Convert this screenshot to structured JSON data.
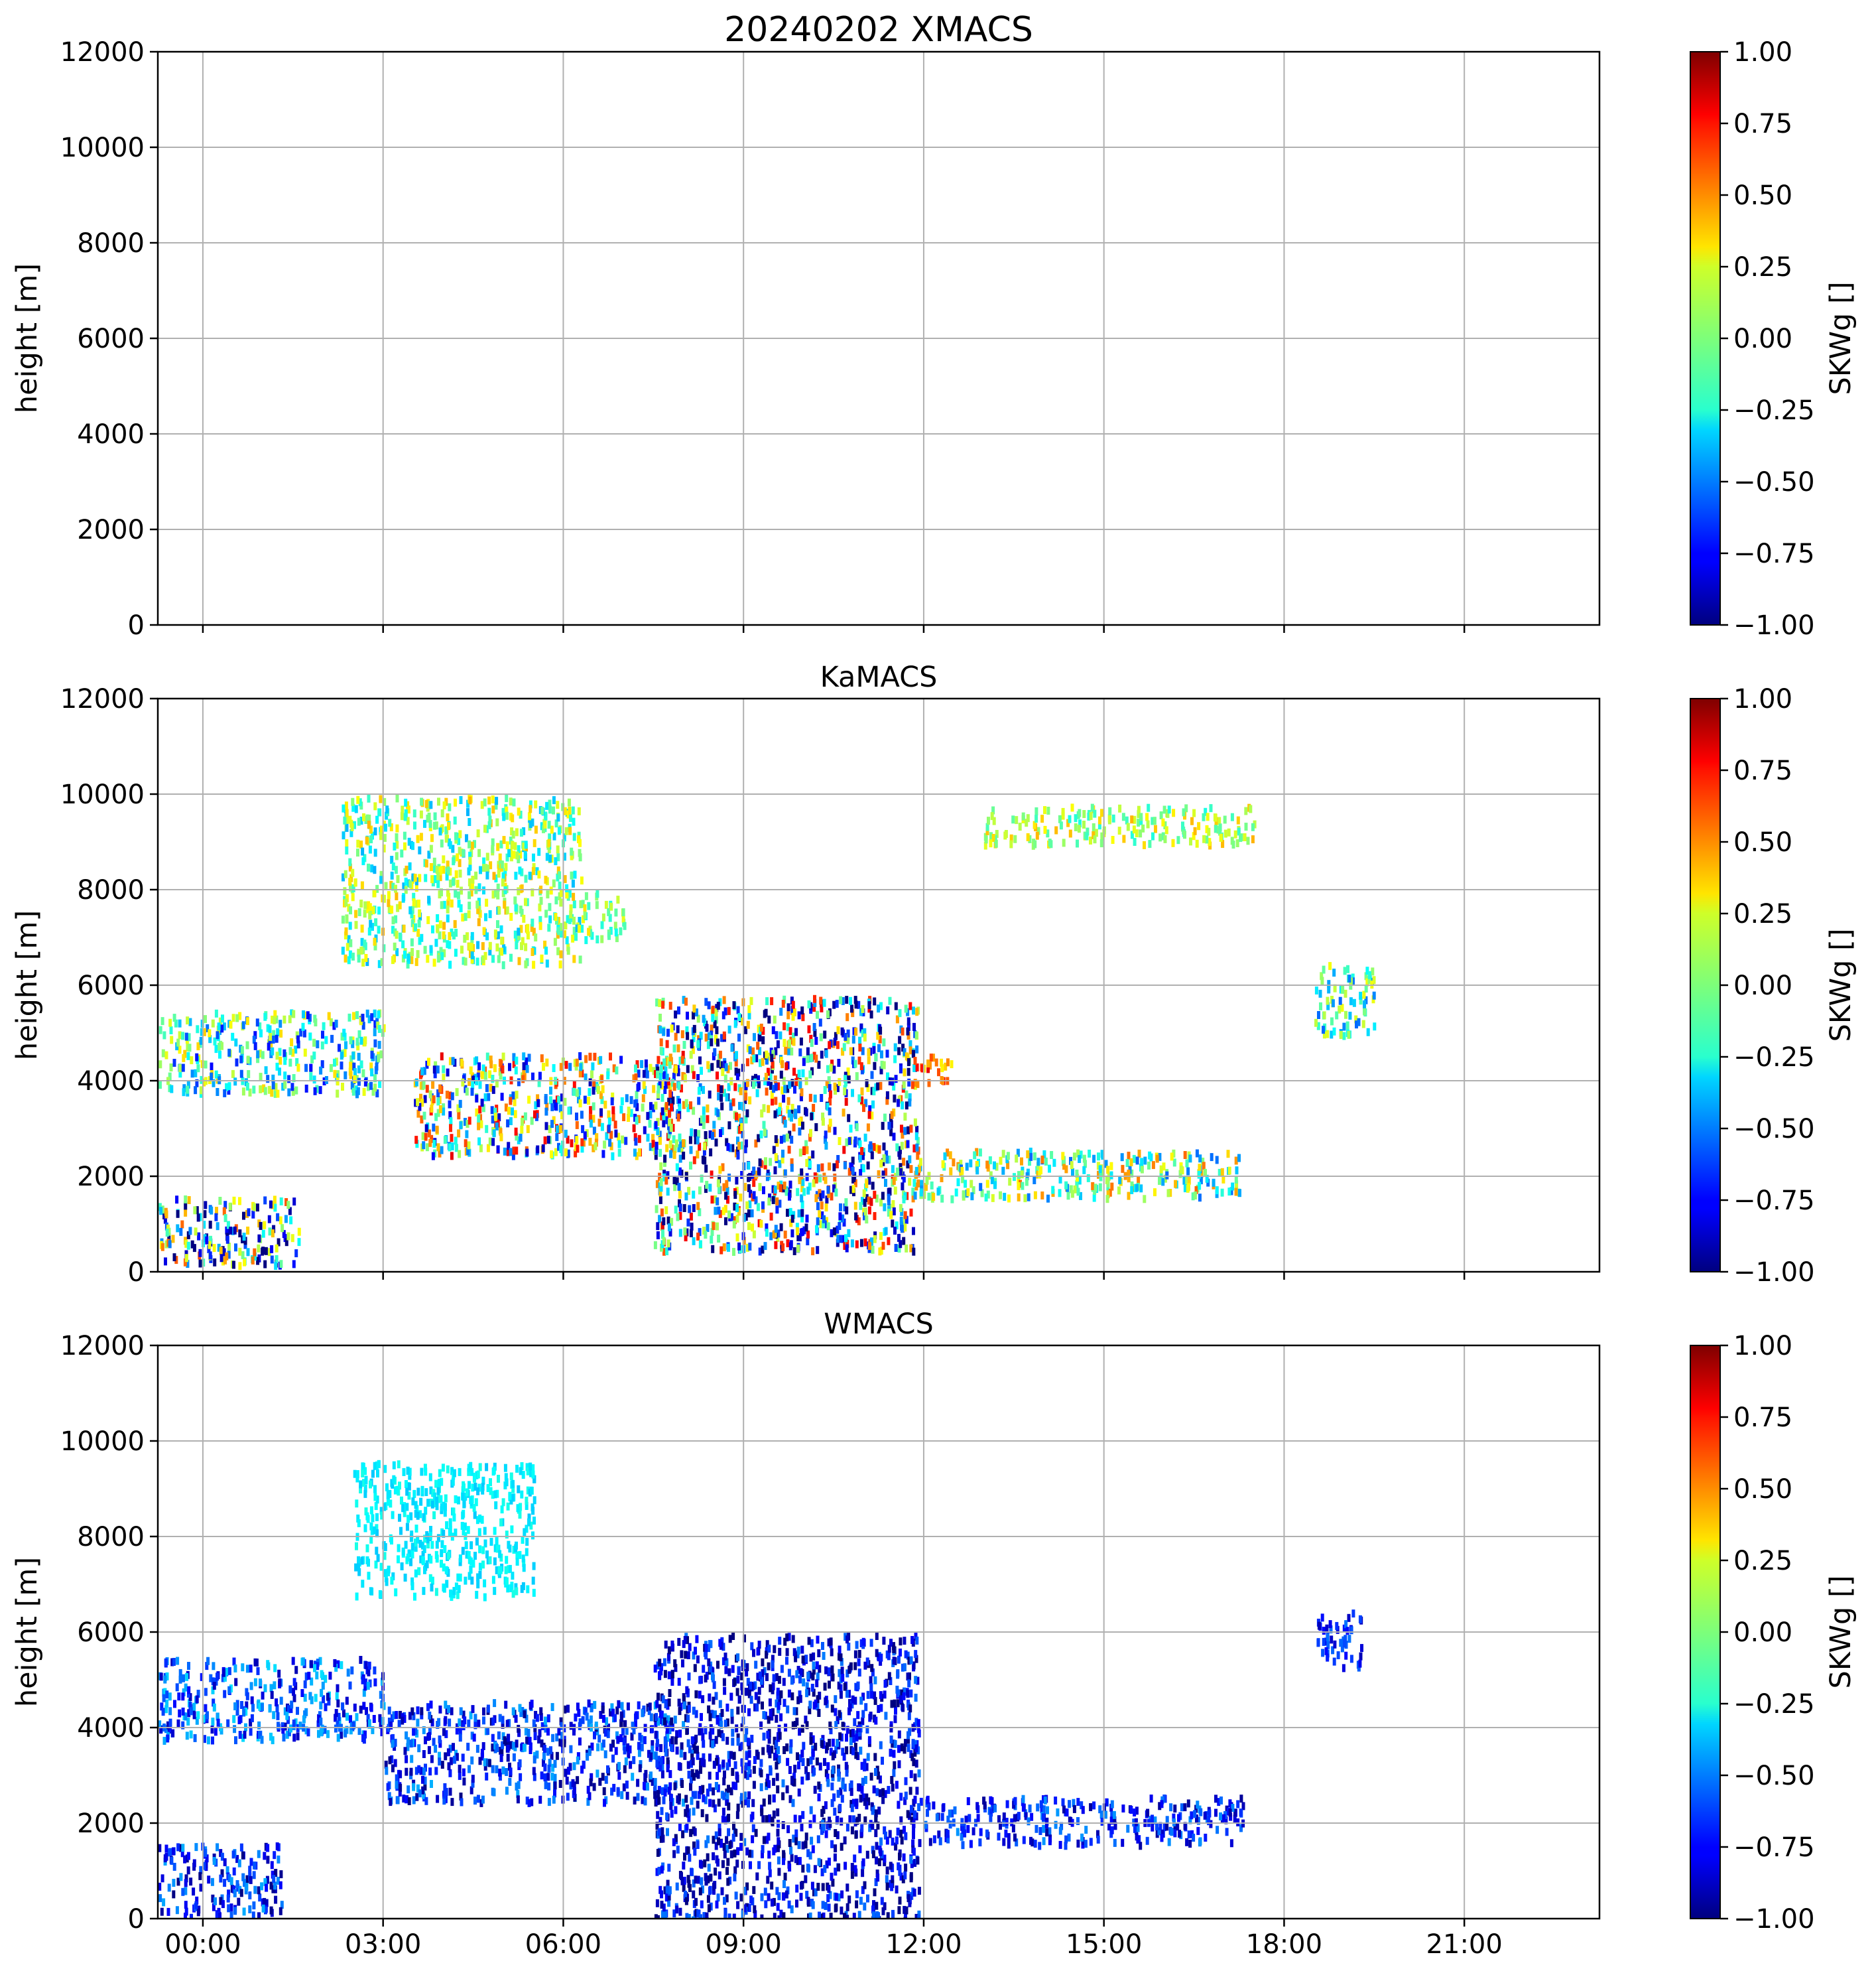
{
  "figure_title": "20240202 XMACS",
  "x_tick_labels": [
    "00:00",
    "03:00",
    "06:00",
    "09:00",
    "12:00",
    "15:00",
    "18:00",
    "21:00"
  ],
  "chart_data": [
    {
      "type": "heatmap",
      "title": "",
      "ylabel": "height [m]",
      "xlim_hours": [
        -0.75,
        23.25
      ],
      "ylim": [
        0,
        12000
      ],
      "y_ticks": [
        0,
        2000,
        4000,
        6000,
        8000,
        10000,
        12000
      ],
      "grid": true,
      "colorbar": {
        "label": "SKWg []",
        "range": [
          -1.0,
          1.0
        ],
        "colormap": "jet",
        "ticks": [
          "−1.00",
          "−0.75",
          "−0.50",
          "−0.25",
          "0.00",
          "0.25",
          "0.50",
          "0.75",
          "1.00"
        ]
      },
      "regions": []
    },
    {
      "type": "heatmap",
      "title": "KaMACS",
      "ylabel": "height [m]",
      "xlim_hours": [
        -0.75,
        23.25
      ],
      "ylim": [
        0,
        12000
      ],
      "y_ticks": [
        0,
        2000,
        4000,
        6000,
        8000,
        10000,
        12000
      ],
      "grid": true,
      "colorbar": {
        "label": "SKWg []",
        "range": [
          -1.0,
          1.0
        ],
        "colormap": "jet",
        "ticks": [
          "−1.00",
          "−0.75",
          "−0.50",
          "−0.25",
          "0.00",
          "0.25",
          "0.50",
          "0.75",
          "1.00"
        ]
      },
      "regions": [
        {
          "t": [
            2.3,
            6.3
          ],
          "h": [
            6500,
            10000
          ],
          "v": 0.0,
          "spread": 0.4
        },
        {
          "t": [
            -0.75,
            3.0
          ],
          "h": [
            3800,
            5500
          ],
          "v": -0.2,
          "spread": 0.55
        },
        {
          "t": [
            3.5,
            8.0
          ],
          "h": [
            2500,
            4600
          ],
          "v": -0.05,
          "spread": 0.85
        },
        {
          "t": [
            7.5,
            11.9
          ],
          "h": [
            500,
            5800
          ],
          "v": -0.2,
          "spread": 1.0
        },
        {
          "t": [
            -0.75,
            1.6
          ],
          "h": [
            200,
            1600
          ],
          "v": -0.3,
          "spread": 0.9
        },
        {
          "t": [
            11.8,
            17.3
          ],
          "h": [
            1600,
            2600
          ],
          "v": 0.0,
          "spread": 0.55
        },
        {
          "t": [
            6.3,
            7.0
          ],
          "h": [
            7000,
            8000
          ],
          "v": 0.05,
          "spread": 0.3
        },
        {
          "t": [
            13.0,
            17.5
          ],
          "h": [
            9000,
            9800
          ],
          "v": 0.1,
          "spread": 0.3
        },
        {
          "t": [
            18.5,
            19.5
          ],
          "h": [
            5000,
            6500
          ],
          "v": -0.15,
          "spread": 0.4
        },
        {
          "t": [
            11.8,
            12.5
          ],
          "h": [
            4000,
            4600
          ],
          "v": 0.5,
          "spread": 0.3
        }
      ]
    },
    {
      "type": "heatmap",
      "title": "WMACS",
      "ylabel": "height [m]",
      "xlim_hours": [
        -0.75,
        23.25
      ],
      "ylim": [
        0,
        12000
      ],
      "y_ticks": [
        0,
        2000,
        4000,
        6000,
        8000,
        10000,
        12000
      ],
      "grid": true,
      "colorbar": {
        "label": "SKWg []",
        "range": [
          -1.0,
          1.0
        ],
        "colormap": "jet",
        "ticks": [
          "−1.00",
          "−0.75",
          "−0.50",
          "−0.25",
          "0.00",
          "0.25",
          "0.50",
          "0.75",
          "1.00"
        ]
      },
      "regions": [
        {
          "t": [
            2.5,
            5.5
          ],
          "h": [
            6800,
            9600
          ],
          "v": -0.28,
          "spread": 0.08
        },
        {
          "t": [
            -0.75,
            3.0
          ],
          "h": [
            3800,
            5500
          ],
          "v": -0.6,
          "spread": 0.3
        },
        {
          "t": [
            3.0,
            8.0
          ],
          "h": [
            2500,
            4600
          ],
          "v": -0.7,
          "spread": 0.3
        },
        {
          "t": [
            7.5,
            11.9
          ],
          "h": [
            0,
            6000
          ],
          "v": -0.8,
          "spread": 0.3
        },
        {
          "t": [
            -0.75,
            1.3
          ],
          "h": [
            100,
            1600
          ],
          "v": -0.7,
          "spread": 0.3
        },
        {
          "t": [
            11.8,
            17.3
          ],
          "h": [
            1600,
            2600
          ],
          "v": -0.7,
          "spread": 0.25
        },
        {
          "t": [
            18.5,
            19.3
          ],
          "h": [
            5300,
            6500
          ],
          "v": -0.7,
          "spread": 0.2
        }
      ]
    }
  ]
}
